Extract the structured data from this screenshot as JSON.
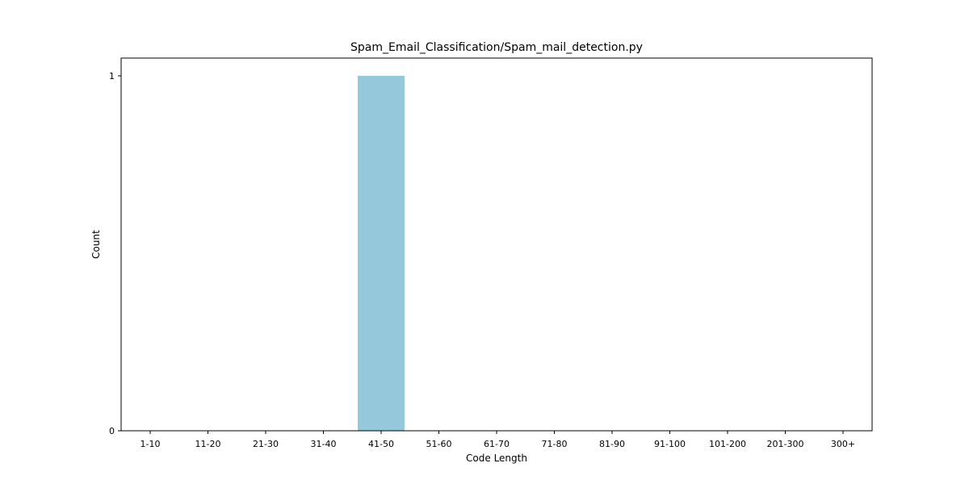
{
  "chart_data": {
    "type": "bar",
    "title": "Spam_Email_Classification/Spam_mail_detection.py",
    "xlabel": "Code Length",
    "ylabel": "Count",
    "categories": [
      "1-10",
      "11-20",
      "21-30",
      "31-40",
      "41-50",
      "51-60",
      "61-70",
      "71-80",
      "81-90",
      "91-100",
      "101-200",
      "201-300",
      "300+"
    ],
    "values": [
      0,
      0,
      0,
      0,
      1,
      0,
      0,
      0,
      0,
      0,
      0,
      0,
      0
    ],
    "ylim": [
      0,
      1
    ],
    "yticks": [
      0,
      1
    ],
    "bar_color": "#96c8dc",
    "grid": false,
    "legend": "none"
  }
}
